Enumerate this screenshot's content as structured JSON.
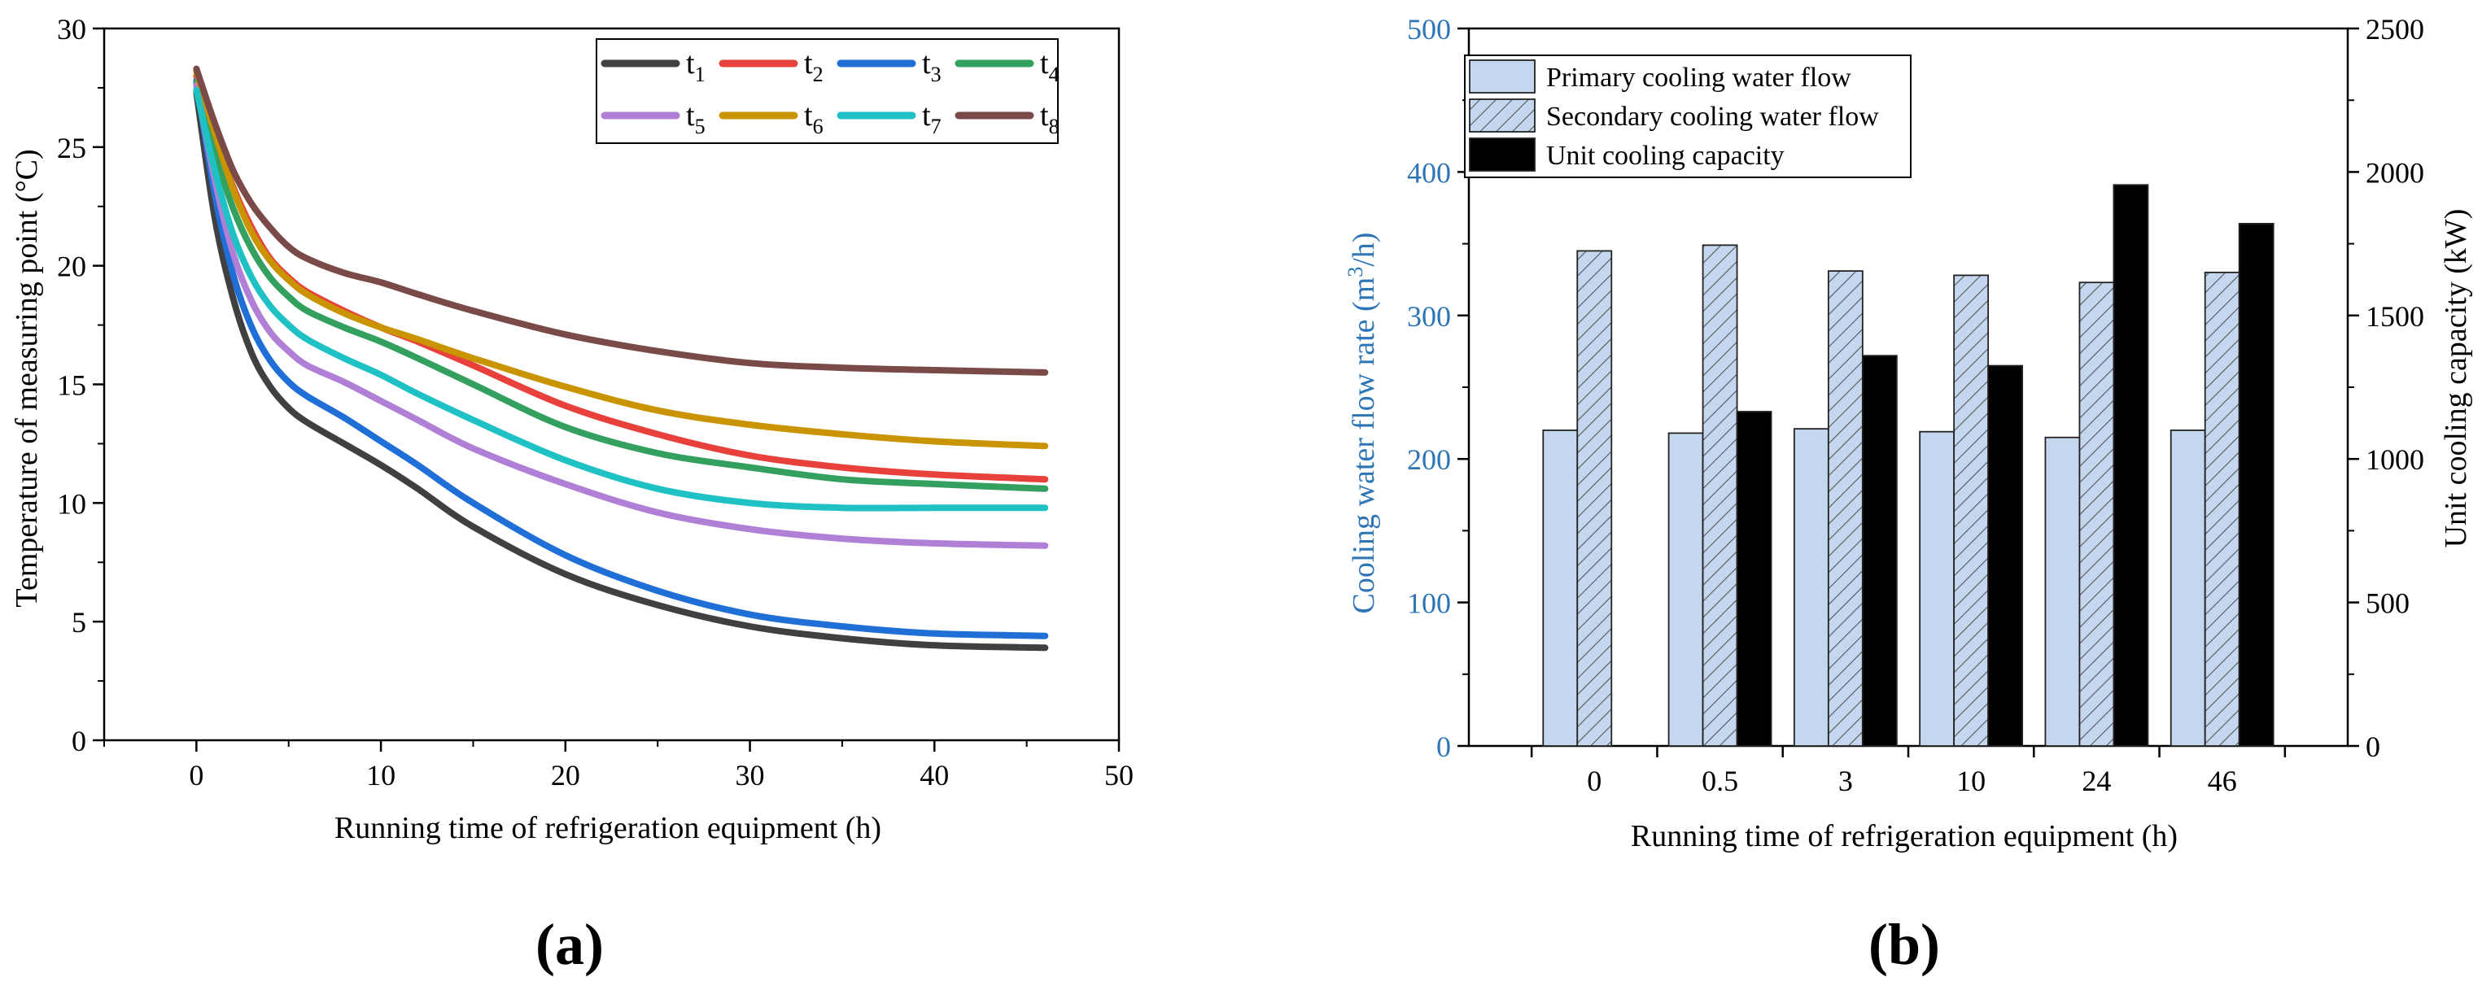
{
  "panels": [
    {
      "id": "a",
      "label": "(a)"
    },
    {
      "id": "b",
      "label": "(b)"
    }
  ],
  "chart_data": [
    {
      "type": "line",
      "panel": "a",
      "title": "",
      "xlabel": "Running time of refrigeration equipment (h)",
      "ylabel": "Temperature of measuring point (°C)",
      "xlim": [
        -5,
        50
      ],
      "ylim": [
        0,
        30
      ],
      "xticks": [
        0,
        10,
        20,
        30,
        40,
        50
      ],
      "yticks": [
        0,
        5,
        10,
        15,
        20,
        25,
        30
      ],
      "grid": false,
      "legend_position": "top-right",
      "x": [
        0,
        1,
        2,
        3,
        4,
        5,
        6,
        8,
        10,
        12,
        15,
        20,
        25,
        30,
        35,
        40,
        46
      ],
      "series": [
        {
          "name": "t1",
          "base": "t",
          "sub": "1",
          "color": "#404040",
          "values": [
            27.3,
            22.0,
            18.6,
            16.3,
            14.9,
            14.0,
            13.4,
            12.5,
            11.6,
            10.6,
            9.0,
            7.0,
            5.7,
            4.8,
            4.3,
            4.0,
            3.9
          ]
        },
        {
          "name": "t2",
          "base": "t",
          "sub": "2",
          "color": "#e8413c",
          "values": [
            28.0,
            25.5,
            23.3,
            21.6,
            20.3,
            19.5,
            18.9,
            18.1,
            17.4,
            16.8,
            15.8,
            14.1,
            12.9,
            12.0,
            11.5,
            11.2,
            11.0
          ]
        },
        {
          "name": "t3",
          "base": "t",
          "sub": "3",
          "color": "#1f6fd6",
          "values": [
            27.8,
            23.0,
            19.6,
            17.4,
            16.0,
            15.1,
            14.5,
            13.6,
            12.6,
            11.6,
            10.0,
            7.8,
            6.3,
            5.3,
            4.8,
            4.5,
            4.4
          ]
        },
        {
          "name": "t4",
          "base": "t",
          "sub": "4",
          "color": "#34a060",
          "values": [
            27.7,
            24.8,
            22.4,
            20.7,
            19.5,
            18.7,
            18.1,
            17.4,
            16.8,
            16.1,
            15.0,
            13.2,
            12.1,
            11.5,
            11.0,
            10.8,
            10.6
          ]
        },
        {
          "name": "t5",
          "base": "t",
          "sub": "5",
          "color": "#b07fd6",
          "values": [
            27.6,
            23.6,
            20.5,
            18.5,
            17.2,
            16.4,
            15.8,
            15.1,
            14.3,
            13.5,
            12.3,
            10.8,
            9.6,
            8.9,
            8.5,
            8.3,
            8.2
          ]
        },
        {
          "name": "t6",
          "base": "t",
          "sub": "6",
          "color": "#c99400",
          "values": [
            28.2,
            25.6,
            23.2,
            21.4,
            20.2,
            19.4,
            18.8,
            18.0,
            17.4,
            16.9,
            16.1,
            14.9,
            13.9,
            13.3,
            12.9,
            12.6,
            12.4
          ]
        },
        {
          "name": "t7",
          "base": "t",
          "sub": "7",
          "color": "#1fc1c4",
          "values": [
            27.4,
            24.0,
            21.3,
            19.5,
            18.3,
            17.5,
            16.9,
            16.1,
            15.4,
            14.6,
            13.5,
            11.8,
            10.6,
            10.0,
            9.8,
            9.8,
            9.8
          ]
        },
        {
          "name": "t8",
          "base": "t",
          "sub": "8",
          "color": "#7a4a48",
          "values": [
            28.3,
            26.0,
            24.0,
            22.6,
            21.6,
            20.8,
            20.3,
            19.7,
            19.3,
            18.8,
            18.1,
            17.1,
            16.4,
            15.9,
            15.7,
            15.6,
            15.5
          ]
        }
      ]
    },
    {
      "type": "bar",
      "panel": "b",
      "title": "",
      "xlabel": "Running time of refrigeration equipment (h)",
      "ylabel_left": "Cooling water flow rate (m³/h)",
      "ylabel_left_parts": [
        "Cooling water flow rate (m",
        "3",
        "/h)"
      ],
      "ylabel_right": "Unit cooling capacity (kW)",
      "categories": [
        "0",
        "0.5",
        "3",
        "10",
        "24",
        "46"
      ],
      "ylim_left": [
        0,
        500
      ],
      "ylim_right": [
        0,
        2500
      ],
      "yticks_left": [
        0,
        100,
        200,
        300,
        400,
        500
      ],
      "yticks_right": [
        0,
        500,
        1000,
        1500,
        2000,
        2500
      ],
      "left_axis_color": "#2e75b6",
      "grid": false,
      "legend_position": "top-left",
      "series": [
        {
          "name": "Primary cooling water flow",
          "axis": "left",
          "style": "solid-light",
          "color": "#c5d7ee",
          "values": [
            220,
            218,
            221,
            219,
            215,
            220
          ]
        },
        {
          "name": "Secondary cooling water flow",
          "axis": "left",
          "style": "hatched",
          "color": "#c5d7ee",
          "values": [
            345,
            349,
            331,
            328,
            323,
            330
          ]
        },
        {
          "name": "Unit cooling capacity",
          "axis": "right",
          "style": "solid-black",
          "color": "#000000",
          "values": [
            null,
            1165,
            1360,
            1325,
            1955,
            1820
          ]
        }
      ]
    }
  ]
}
